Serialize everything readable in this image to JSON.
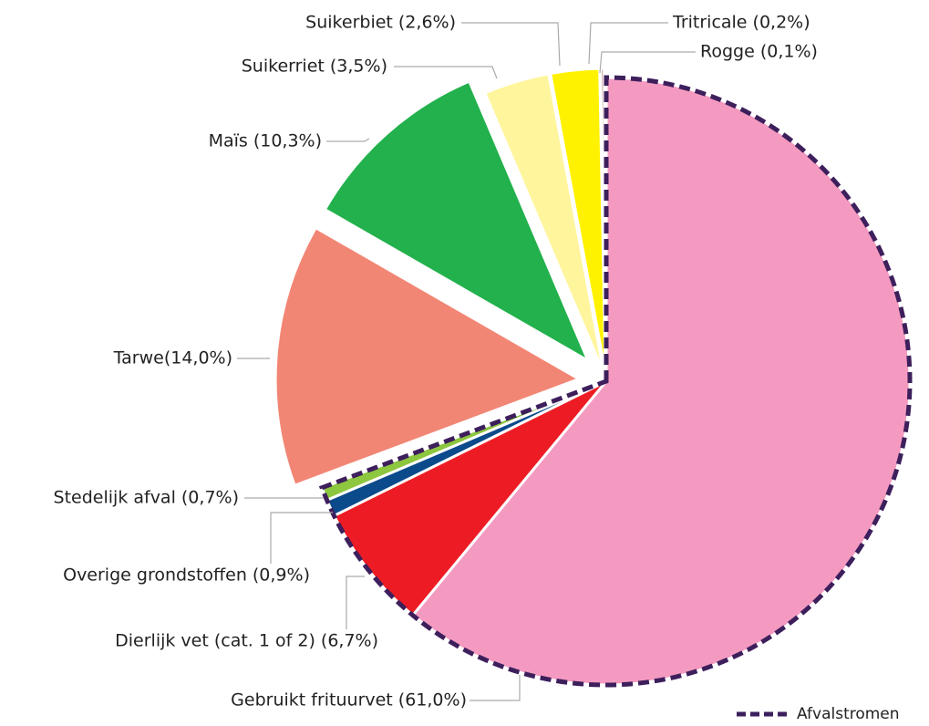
{
  "chart_data": {
    "type": "pie",
    "categories": [
      "Gebruikt frituurvet (61,0%)",
      "Dierlijk vet (cat. 1 of 2) (6,7%)",
      "Overige grondstoffen (0,9%)",
      "Stedelijk afval (0,7%)",
      "Tarwe(14,0%)",
      "Maïs (10,3%)",
      "Suikerriet (3,5%)",
      "Suikerbiet (2,6%)",
      "Tritricale (0,2%)",
      "Rogge (0,1%)"
    ],
    "values": [
      61.0,
      6.7,
      0.9,
      0.7,
      14.0,
      10.3,
      3.5,
      2.6,
      0.2,
      0.1
    ],
    "colors": [
      "#f49ac1",
      "#ed1c24",
      "#0b4a8b",
      "#8dc63f",
      "#f28674",
      "#22b14c",
      "#fff59d",
      "#fff200",
      "#c9a39f",
      "#29b6e8"
    ],
    "waste": [
      true,
      true,
      true,
      true,
      false,
      false,
      false,
      false,
      false,
      false
    ],
    "legend": {
      "label": "Afvalstromen",
      "color": "#3d1f5c"
    }
  }
}
